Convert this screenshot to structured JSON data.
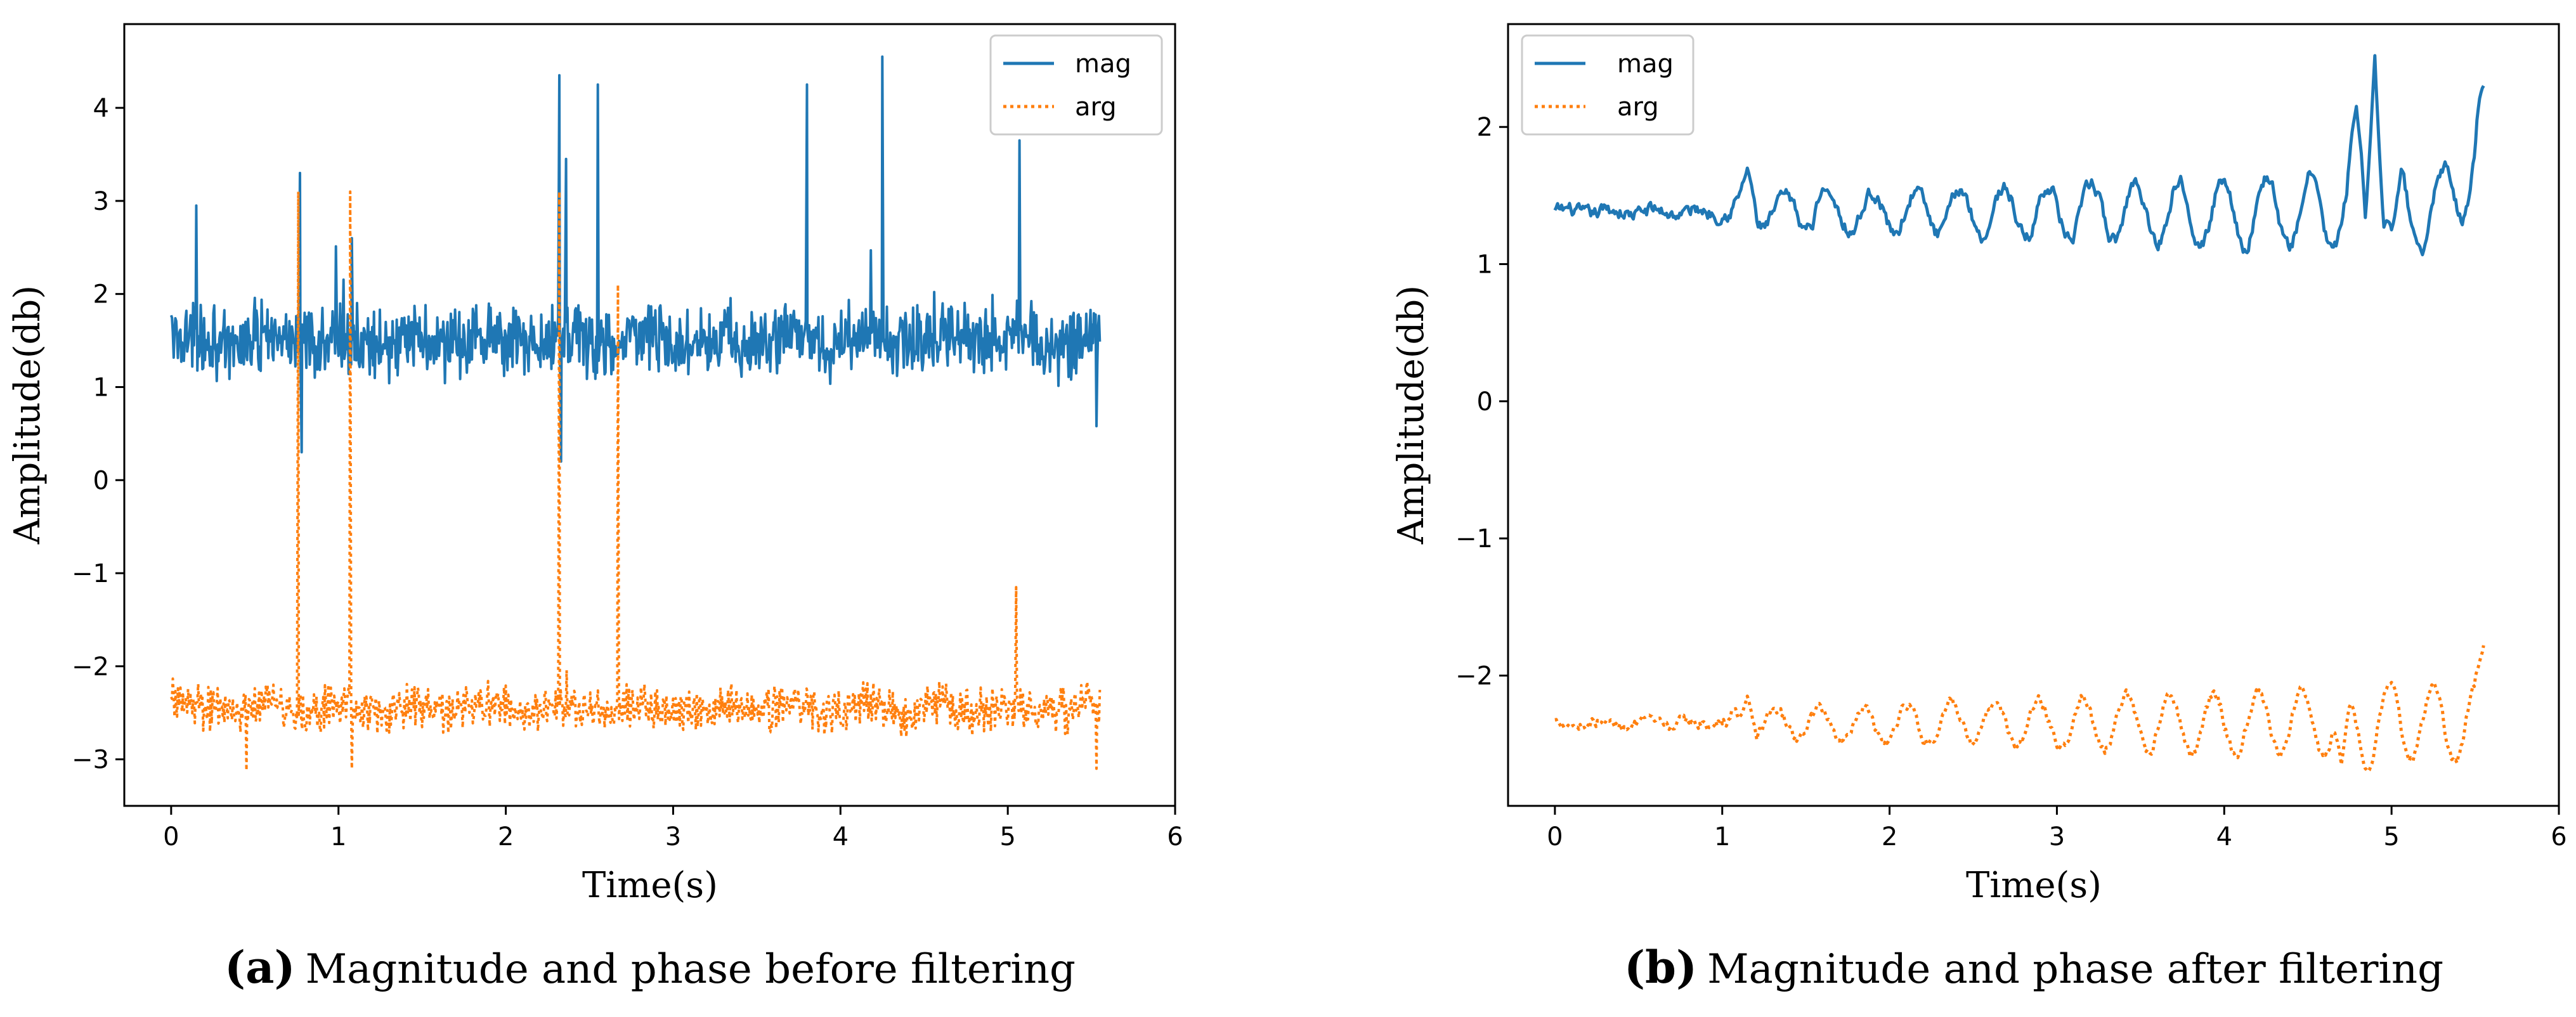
{
  "chart_data": [
    {
      "type": "line",
      "panel_letter": "(a)",
      "caption": "Magnitude and phase before filtering",
      "xlabel": "Time(s)",
      "ylabel": "Amplitude(db)",
      "xlim": [
        -0.28,
        6.0
      ],
      "ylim": [
        -3.5,
        4.9
      ],
      "xticks": [
        0,
        1,
        2,
        3,
        4,
        5,
        6
      ],
      "yticks": [
        -3,
        -2,
        -1,
        0,
        1,
        2,
        3,
        4
      ],
      "legend_position": "top-right",
      "series": [
        {
          "name": "mag",
          "color": "#1f77b4",
          "style": "solid",
          "x_range": [
            0,
            5.55
          ],
          "baseline": 1.5,
          "noise": 0.32,
          "samples": 1100,
          "features": [
            {
              "x": 0.15,
              "y": 2.95
            },
            {
              "x": 0.77,
              "y": 3.3
            },
            {
              "x": 0.78,
              "y": 0.3
            },
            {
              "x": 1.08,
              "y": 2.6
            },
            {
              "x": 2.32,
              "y": 4.35
            },
            {
              "x": 2.33,
              "y": 0.2
            },
            {
              "x": 2.36,
              "y": 3.45
            },
            {
              "x": 2.55,
              "y": 4.25
            },
            {
              "x": 3.8,
              "y": 4.25
            },
            {
              "x": 4.25,
              "y": 4.55
            },
            {
              "x": 5.07,
              "y": 3.65
            },
            {
              "x": 5.53,
              "y": 0.58
            }
          ]
        },
        {
          "name": "arg",
          "color": "#ff7f0e",
          "style": "dotted",
          "x_range": [
            0,
            5.55
          ],
          "baseline": -2.45,
          "noise": 0.2,
          "samples": 1100,
          "features": [
            {
              "x": 0.76,
              "y": 3.1
            },
            {
              "x": 1.07,
              "y": 3.1
            },
            {
              "x": 2.32,
              "y": 3.1
            },
            {
              "x": 2.67,
              "y": 2.1
            },
            {
              "x": 5.05,
              "y": -1.15
            },
            {
              "x": 0.45,
              "y": -3.12
            },
            {
              "x": 1.08,
              "y": -3.1
            },
            {
              "x": 5.53,
              "y": -3.1
            }
          ]
        }
      ]
    },
    {
      "type": "line",
      "panel_letter": "(b)",
      "caption": "Magnitude and phase after filtering",
      "xlabel": "Time(s)",
      "ylabel": "Amplitude(db)",
      "xlim": [
        -0.28,
        6.0
      ],
      "ylim": [
        -2.95,
        2.75
      ],
      "xticks": [
        0,
        1,
        2,
        3,
        4,
        5,
        6
      ],
      "yticks": [
        -2,
        -1,
        0,
        1,
        2
      ],
      "legend_position": "top-left",
      "series": [
        {
          "name": "mag",
          "color": "#1f77b4",
          "style": "solid",
          "x_range": [
            0,
            5.55
          ],
          "baseline": 1.38,
          "noise": 0.04,
          "samples": 700,
          "features": [
            {
              "x": 1.15,
              "y": 1.7
            },
            {
              "x": 1.6,
              "y": 1.55
            },
            {
              "x": 4.79,
              "y": 2.15
            },
            {
              "x": 4.9,
              "y": 2.52
            },
            {
              "x": 5.0,
              "y": 1.25
            },
            {
              "x": 5.55,
              "y": 2.3
            }
          ]
        },
        {
          "name": "arg",
          "color": "#ff7f0e",
          "style": "dotted",
          "x_range": [
            0,
            5.55
          ],
          "baseline": -2.35,
          "noise": 0.03,
          "samples": 700,
          "features": [
            {
              "x": 1.15,
              "y": -2.15
            },
            {
              "x": 4.7,
              "y": -2.65
            },
            {
              "x": 4.86,
              "y": -2.7
            },
            {
              "x": 5.0,
              "y": -2.05
            },
            {
              "x": 5.55,
              "y": -1.78
            }
          ]
        }
      ]
    }
  ]
}
